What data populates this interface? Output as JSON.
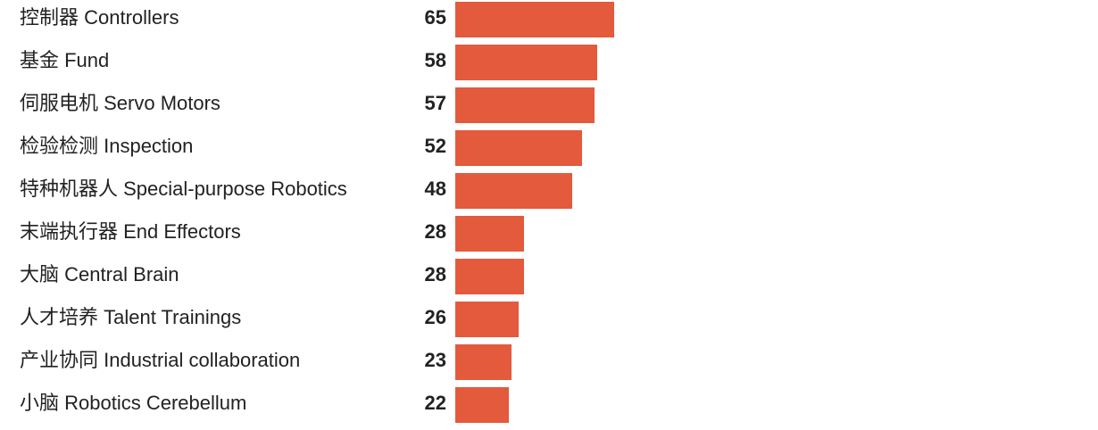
{
  "chart_data": {
    "type": "bar",
    "orientation": "horizontal",
    "categories": [
      "控制器 Controllers",
      "基金 Fund",
      "伺服电机 Servo Motors",
      "检验检测 Inspection",
      "特种机器人 Special-purpose Robotics",
      "末端执行器 End Effectors",
      "大脑 Central Brain",
      "人才培养 Talent Trainings",
      "产业协同 Industrial collaboration",
      "小脑 Robotics Cerebellum"
    ],
    "values": [
      65,
      58,
      57,
      52,
      48,
      28,
      28,
      26,
      23,
      22
    ],
    "value_labels": [
      "65",
      "58",
      "57",
      "52",
      "48",
      "28",
      "28",
      "26",
      "23",
      "22"
    ],
    "title": "",
    "xlabel": "",
    "ylabel": "",
    "grid": false,
    "legend": "none",
    "bar_color": "#e35a3c"
  }
}
